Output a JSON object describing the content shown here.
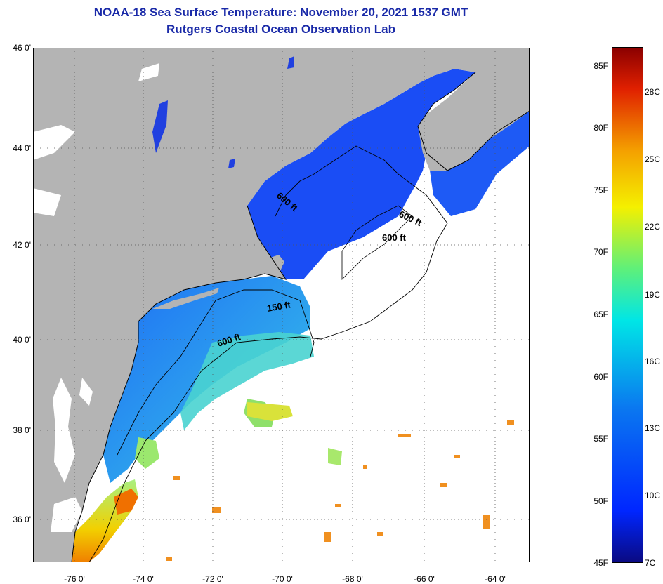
{
  "title": {
    "line1": "NOAA-18 Sea Surface Temperature:  November 20, 2021 1537 GMT",
    "line2": "Rutgers Coastal Ocean Observation Lab"
  },
  "latitude_labels": [
    "46 0'",
    "44 0'",
    "42 0'",
    "40 0'",
    "38 0'",
    "36 0'"
  ],
  "longitude_labels": [
    "-76 0'",
    "-74 0'",
    "-72 0'",
    "-70 0'",
    "-68 0'",
    "-66 0'",
    "-64 0'"
  ],
  "contour_labels": [
    "600 ft",
    "600 ft",
    "600 ft",
    "150 ft",
    "600 ft"
  ],
  "colorbar": {
    "fahrenheit_labels": [
      "85F",
      "80F",
      "75F",
      "70F",
      "65F",
      "60F",
      "55F",
      "50F",
      "45F"
    ],
    "celsius_labels": [
      "28C",
      "25C",
      "22C",
      "19C",
      "16C",
      "13C",
      "10C",
      "7C"
    ]
  },
  "colors": {
    "title": "#1a2aa8",
    "land": "#b4b4b4",
    "ocean_missing": "#ffffff"
  }
}
